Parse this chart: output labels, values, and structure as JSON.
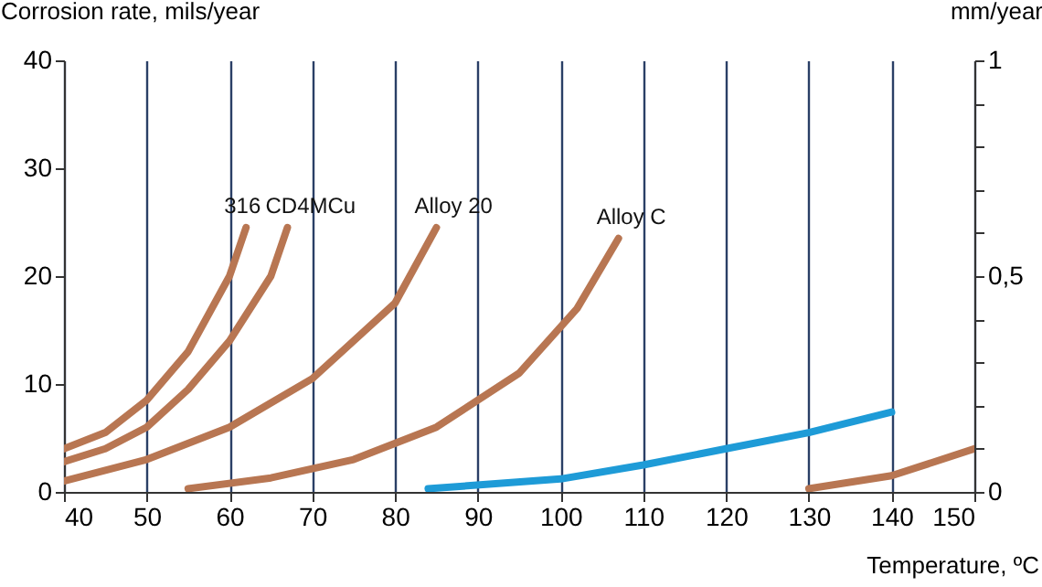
{
  "chart_data": {
    "type": "line",
    "xlabel": "Temperature, ºC",
    "ylabel": "Corrosion rate, mils/year",
    "y2label": "mm/year",
    "xlim": [
      40,
      150
    ],
    "xticks": [
      40,
      50,
      60,
      70,
      80,
      90,
      100,
      110,
      120,
      130,
      140,
      150
    ],
    "ylim": [
      0,
      40
    ],
    "yticks": [
      0,
      10,
      20,
      30,
      40
    ],
    "y2lim": [
      0,
      1
    ],
    "y2ticks": [
      0,
      {
        "value": 0.1,
        "label": null
      },
      {
        "value": 0.2,
        "label": null
      },
      {
        "value": 0.3,
        "label": null
      },
      {
        "value": 0.4,
        "label": null
      },
      {
        "value": 0.5,
        "label": "0,5"
      },
      {
        "value": 0.6,
        "label": null
      },
      {
        "value": 0.7,
        "label": null
      },
      {
        "value": 0.8,
        "label": null
      },
      {
        "value": 0.9,
        "label": null
      },
      1
    ],
    "grid": "x",
    "marker": "none",
    "line_style": "solid",
    "series": [
      {
        "name": "316",
        "color": "#b87652",
        "x": [
          40,
          45,
          50,
          55,
          60,
          62
        ],
        "values": [
          4,
          5.5,
          8.5,
          13,
          20,
          24.5
        ]
      },
      {
        "name": "CD4MCu",
        "color": "#b87652",
        "x": [
          40,
          45,
          50,
          55,
          60,
          65,
          67
        ],
        "values": [
          2.8,
          4,
          6,
          9.5,
          14,
          20,
          24.5
        ]
      },
      {
        "name": "Alloy 20",
        "color": "#b87652",
        "x": [
          40,
          50,
          60,
          70,
          80,
          85
        ],
        "values": [
          1,
          3,
          6,
          10.5,
          17.5,
          24.5
        ]
      },
      {
        "name": "Alloy C",
        "color": "#b87652",
        "x": [
          55,
          65,
          75,
          85,
          95,
          102,
          107
        ],
        "values": [
          0.3,
          1.3,
          3,
          6,
          11,
          17,
          23.5
        ]
      },
      {
        "color": "#1e9bd7",
        "x": [
          84,
          100,
          110,
          120,
          130,
          140
        ],
        "values": [
          0.3,
          1.2,
          2.5,
          4,
          5.5,
          7.4
        ]
      },
      {
        "color": "#b87652",
        "x": [
          130,
          140,
          150
        ],
        "values": [
          0.3,
          1.5,
          4
        ]
      }
    ]
  }
}
